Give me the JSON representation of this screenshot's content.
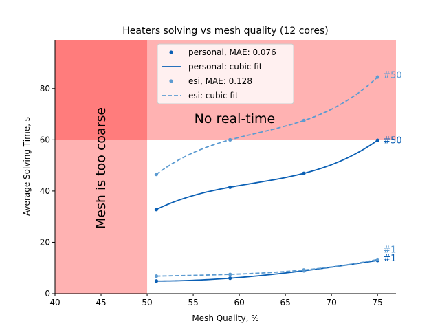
{
  "chart_data": {
    "type": "line",
    "title": "Heaters solving vs mesh quality (12 cores)",
    "xlabel": "Mesh Quality, %",
    "ylabel": "Average Solving Time, s",
    "xlim": [
      40,
      77
    ],
    "ylim": [
      0,
      99
    ],
    "xticks": [
      "40",
      "45",
      "50",
      "55",
      "60",
      "65",
      "70",
      "75"
    ],
    "yticks": [
      "0",
      "20",
      "40",
      "60",
      "80"
    ],
    "grid": false,
    "legend_position": "top-center",
    "regions": [
      {
        "label": "Mesh is too coarse",
        "x_range": [
          40,
          50
        ],
        "y_range": [
          0,
          99
        ],
        "color": "#ff0000",
        "opacity": 0.3
      },
      {
        "label": "No real-time",
        "x_range": [
          40,
          77
        ],
        "y_range": [
          60,
          99
        ],
        "color": "#ff0000",
        "opacity": 0.3
      }
    ],
    "series": [
      {
        "name": "personal, MAE: 0.076",
        "fit_name": "personal: cubic fit",
        "group": "#50",
        "color": "#0a5fb4",
        "dash": "solid",
        "x": [
          51,
          59,
          67,
          75
        ],
        "y": [
          32.8,
          41.5,
          46.9,
          59.8
        ]
      },
      {
        "name": "esi, MAE: 0.128",
        "fit_name": "esi: cubic fit",
        "group": "#50",
        "color": "#5c9bd1",
        "dash": "dashed",
        "x": [
          51,
          59,
          67,
          75
        ],
        "y": [
          46.5,
          60.0,
          67.5,
          84.5
        ]
      },
      {
        "name": "personal, MAE: 0.076",
        "fit_name": "personal: cubic fit",
        "group": "#1",
        "color": "#0a5fb4",
        "dash": "solid",
        "x": [
          51,
          59,
          67,
          75
        ],
        "y": [
          4.9,
          6.0,
          8.9,
          12.9
        ]
      },
      {
        "name": "esi, MAE: 0.128",
        "fit_name": "esi: cubic fit",
        "group": "#1",
        "color": "#5c9bd1",
        "dash": "dashed",
        "x": [
          51,
          59,
          67,
          75
        ],
        "y": [
          6.8,
          7.5,
          9.2,
          13.3
        ]
      }
    ],
    "series_tags": [
      {
        "text": "#50",
        "color": "#5c9bd1",
        "x": 75.6,
        "y": 85.5
      },
      {
        "text": "#50",
        "color": "#0a5fb4",
        "x": 75.6,
        "y": 60.0
      },
      {
        "text": "#1",
        "color": "#5c9bd1",
        "x": 75.6,
        "y": 17.3
      },
      {
        "text": "#1",
        "color": "#0a5fb4",
        "x": 75.6,
        "y": 14.0
      }
    ],
    "legend": [
      {
        "label": "personal, MAE: 0.076",
        "kind": "marker",
        "color": "#0a5fb4"
      },
      {
        "label": "personal: cubic fit",
        "kind": "solid",
        "color": "#0a5fb4"
      },
      {
        "label": "esi, MAE: 0.128",
        "kind": "marker",
        "color": "#5c9bd1"
      },
      {
        "label": "esi: cubic fit",
        "kind": "dashed",
        "color": "#5c9bd1"
      }
    ]
  }
}
